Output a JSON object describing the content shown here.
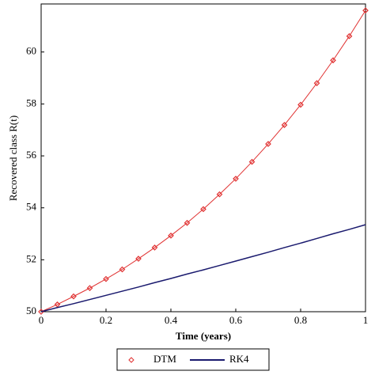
{
  "chart_data": {
    "type": "line",
    "x_label": "Time (years)",
    "y_label": "Recovered class R(t)",
    "x": [
      0,
      0.05,
      0.1,
      0.15,
      0.2,
      0.25,
      0.3,
      0.35,
      0.4,
      0.45,
      0.5,
      0.55,
      0.6,
      0.65,
      0.7,
      0.75,
      0.8,
      0.85,
      0.9,
      0.95,
      1
    ],
    "series": [
      {
        "name": "DTM",
        "color": "#e03030",
        "marker": "diamond",
        "values": [
          50,
          50.28,
          50.59,
          50.91,
          51.26,
          51.63,
          52.04,
          52.47,
          52.93,
          53.42,
          53.95,
          54.52,
          55.12,
          55.77,
          56.46,
          57.19,
          57.97,
          58.8,
          59.68,
          60.61,
          61.6
        ]
      },
      {
        "name": "RK4",
        "color": "#1a1a6e",
        "marker": "none",
        "values": [
          50,
          50.16,
          50.31,
          50.47,
          50.63,
          50.79,
          50.95,
          51.12,
          51.28,
          51.45,
          51.61,
          51.78,
          51.95,
          52.12,
          52.29,
          52.47,
          52.64,
          52.82,
          53.0,
          53.17,
          53.35
        ]
      }
    ],
    "xlim": [
      0,
      1
    ],
    "ylim": [
      50,
      61.85
    ],
    "xticks": [
      0,
      0.2,
      0.4,
      0.6,
      0.8,
      1
    ],
    "yticks": [
      50,
      52,
      54,
      56,
      58,
      60
    ],
    "legend": "bottom"
  }
}
